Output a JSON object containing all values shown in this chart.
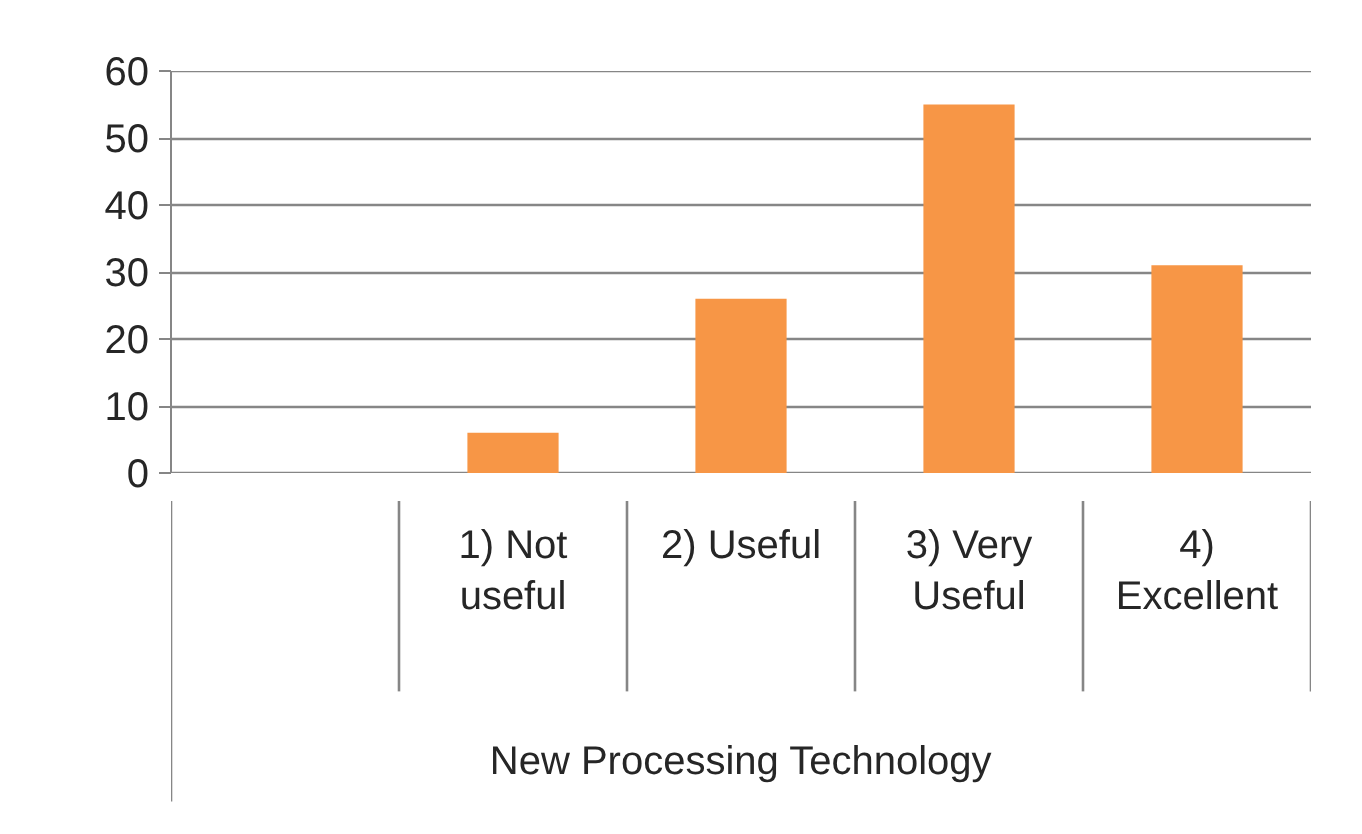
{
  "chart_data": {
    "type": "bar",
    "xlabel": "New Processing Technology",
    "categories": [
      null,
      "1) Not useful",
      "2) Useful",
      "3) Very Useful",
      "4) Excellent"
    ],
    "values": [
      null,
      6,
      26,
      55,
      31
    ],
    "color": "#f79646",
    "ylim": [
      0,
      60
    ],
    "yticks": [
      0,
      10,
      20,
      30,
      40,
      50,
      60
    ],
    "grid": "y"
  }
}
